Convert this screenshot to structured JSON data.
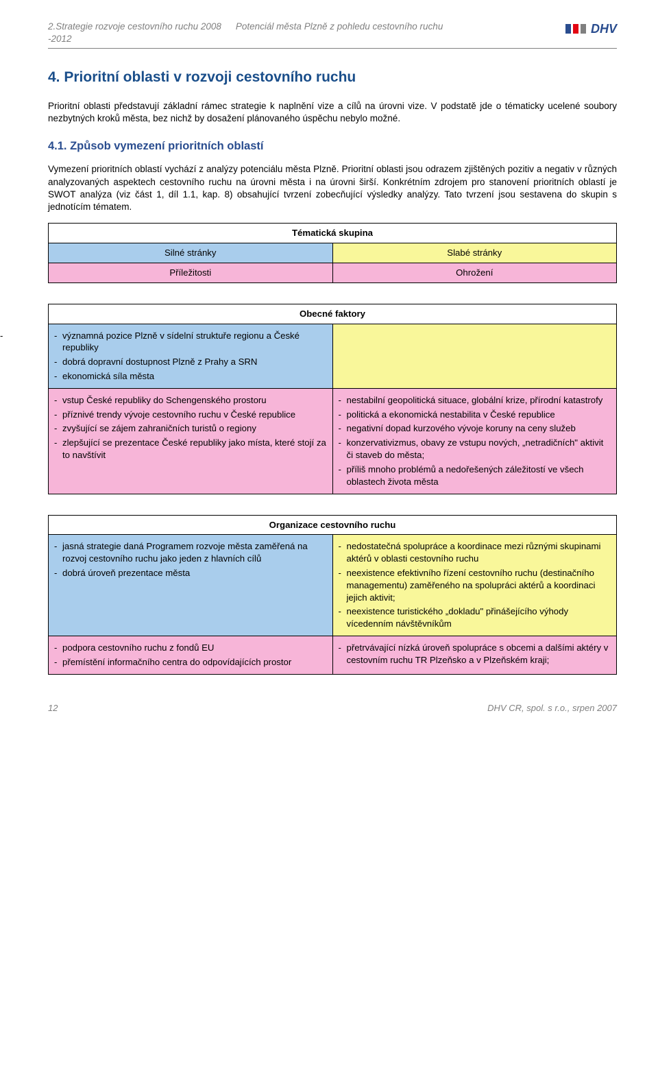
{
  "header": {
    "left": "2.Strategie rozvoje cestovního ruchu 2008 -2012",
    "mid": "Potenciál města Plzně z pohledu cestovního ruchu",
    "logo_text": "DHV",
    "logo_colors": [
      "#2a4d8f",
      "#e30613",
      "#808080"
    ]
  },
  "title": "4. Prioritní oblasti v rozvoji cestovního ruchu",
  "para1": "Prioritní oblasti představují základní rámec strategie k naplnění vize a cílů na úrovni vize. V podstatě jde o tématicky ucelené soubory nezbytných kroků města, bez nichž by dosažení plánovaného úspěchu nebylo možné.",
  "subtitle": "4.1. Způsob vymezení prioritních oblastí",
  "para2": "Vymezení prioritních oblastí vychází z analýzy potenciálu města Plzně. Prioritní oblasti jsou odrazem zjištěných pozitiv a negativ v různých analyzovaných aspektech cestovního ruchu na úrovni města i na úrovni širší. Konkrétním zdrojem pro stanovení prioritních oblastí je SWOT analýza (viz část 1, díl 1.1, kap. 8) obsahující tvrzení zobecňující výsledky analýzy. Tato tvrzení jsou sestavena do skupin s jednotícím tématem.",
  "legend": {
    "theme": "Tématická skupina",
    "strong": "Silné stránky",
    "weak": "Slabé stránky",
    "opp": "Příležitosti",
    "thr": "Ohrožení"
  },
  "group1": {
    "theme": "Obecné faktory",
    "strong": [
      "významná pozice Plzně v sídelní struktuře regionu a České republiky",
      "dobrá dopravní dostupnost Plzně z Prahy a SRN",
      "ekonomická síla města"
    ],
    "weak": [
      ""
    ],
    "opp": [
      "vstup České republiky do Schengenského prostoru",
      "příznivé trendy vývoje cestovního ruchu v České republice",
      "zvyšující se zájem zahraničních turistů o regiony",
      "zlepšující se prezentace České republiky jako místa, které stojí za to navštívit"
    ],
    "thr": [
      "nestabilní geopolitická situace, globální krize, přírodní katastrofy",
      "politická a ekonomická nestabilita v České republice",
      "negativní dopad kurzového vývoje koruny na ceny služeb",
      "konzervativizmus, obavy ze vstupu nových, „netradičních\" aktivit či staveb do města;",
      "příliš mnoho problémů a nedořešených záležitostí ve všech oblastech života města"
    ]
  },
  "group2": {
    "theme": "Organizace cestovního ruchu",
    "strong": [
      "jasná strategie daná Programem rozvoje města zaměřená na rozvoj cestovního ruchu jako jeden z hlavních cílů",
      "dobrá úroveň prezentace města"
    ],
    "weak": [
      "nedostatečná spolupráce a koordinace mezi různými skupinami aktérů v oblasti cestovního ruchu",
      "neexistence efektivního řízení cestovního ruchu (destinačního managementu) zaměřeného na spolupráci aktérů a koordinaci jejich aktivit;",
      "neexistence turistického „dokladu\" přinášejícího výhody vícedenním návštěvníkům"
    ],
    "opp": [
      "podpora cestovního ruchu z fondů EU",
      "přemístění informačního centra do odpovídajících prostor"
    ],
    "thr": [
      "přetrvávající nízká úroveň spolupráce s obcemi a dalšími aktéry v cestovním ruchu TR Plzeňsko a v Plzeňském kraji;"
    ]
  },
  "footer": {
    "page": "12",
    "right": "DHV CR, spol. s r.o., srpen 2007"
  },
  "colors": {
    "strong_bg": "#a9cdec",
    "weak_bg": "#f9f79a",
    "opp_bg": "#f7b5d8",
    "heading": "#1a4e8a",
    "subheading": "#2a4d8f",
    "muted": "#808080"
  }
}
